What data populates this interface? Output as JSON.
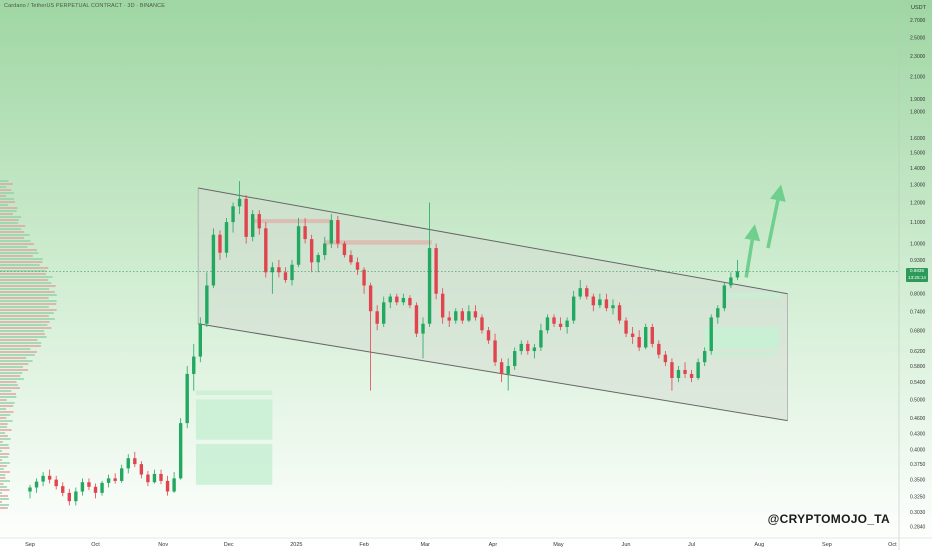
{
  "window": {
    "title": "Cardano / TetherUS PERPETUAL CONTRACT · 3D · BINANCE",
    "watermark": "@CRYPTOMOJO_TA"
  },
  "colors": {
    "background_top": "#9fd6a3",
    "background_bottom": "#ffffff",
    "up_candle": "#22a860",
    "down_candle": "#e0454f",
    "channel_fill": "#d6dcd4",
    "channel_line": "#666666",
    "zone_fill": "#c7f0d3",
    "resistance_fill": "#e2a7a4",
    "arrow": "#6fcf8f",
    "price_tag": "#2e9a5a"
  },
  "chart_data": {
    "type": "candlestick",
    "title": "Cardano / TetherUS PERPETUAL CONTRACT · 3D · BINANCE",
    "y_axis_unit": "USDT",
    "y_scale": "log",
    "ylim": [
      0.27,
      2.85
    ],
    "x_range": [
      "2024-09-01",
      "2025-10-04"
    ],
    "x_ticks": [
      {
        "label": "Sep",
        "date": "2024-09-01"
      },
      {
        "label": "Oct",
        "date": "2024-10-01"
      },
      {
        "label": "Nov",
        "date": "2024-11-01"
      },
      {
        "label": "Dec",
        "date": "2024-12-01"
      },
      {
        "label": "2025",
        "date": "2025-01-01"
      },
      {
        "label": "Feb",
        "date": "2025-02-01"
      },
      {
        "label": "Mar",
        "date": "2025-03-01"
      },
      {
        "label": "Apr",
        "date": "2025-04-01"
      },
      {
        "label": "May",
        "date": "2025-05-01"
      },
      {
        "label": "Jun",
        "date": "2025-06-01"
      },
      {
        "label": "Jul",
        "date": "2025-07-01"
      },
      {
        "label": "Aug",
        "date": "2025-08-01"
      },
      {
        "label": "Sep",
        "date": "2025-09-01"
      },
      {
        "label": "Oct",
        "date": "2025-10-01"
      }
    ],
    "y_ticks": [
      "2.7000",
      "2.5000",
      "2.3000",
      "2.1000",
      "1.9000",
      "1.8000",
      "1.6000",
      "1.5000",
      "1.4000",
      "1.3000",
      "1.2000",
      "1.1000",
      "1.0000",
      "0.9300",
      "0.8000",
      "0.7400",
      "0.6800",
      "0.6200",
      "0.5800",
      "0.5400",
      "0.5000",
      "0.4600",
      "0.4300",
      "0.4000",
      "0.3750",
      "0.3500",
      "0.3250",
      "0.3030",
      "0.2840"
    ],
    "current_price": {
      "value": "0.8835",
      "countdown": "13:25:14"
    },
    "candles": [
      {
        "d": "2024-09-01",
        "o": 0.332,
        "h": 0.342,
        "l": 0.322,
        "c": 0.338
      },
      {
        "d": "2024-09-04",
        "o": 0.338,
        "h": 0.352,
        "l": 0.33,
        "c": 0.347
      },
      {
        "d": "2024-09-07",
        "o": 0.347,
        "h": 0.362,
        "l": 0.34,
        "c": 0.356
      },
      {
        "d": "2024-09-10",
        "o": 0.356,
        "h": 0.366,
        "l": 0.344,
        "c": 0.35
      },
      {
        "d": "2024-09-13",
        "o": 0.35,
        "h": 0.356,
        "l": 0.335,
        "c": 0.34
      },
      {
        "d": "2024-09-16",
        "o": 0.34,
        "h": 0.346,
        "l": 0.325,
        "c": 0.33
      },
      {
        "d": "2024-09-19",
        "o": 0.33,
        "h": 0.336,
        "l": 0.312,
        "c": 0.318
      },
      {
        "d": "2024-09-22",
        "o": 0.318,
        "h": 0.338,
        "l": 0.312,
        "c": 0.332
      },
      {
        "d": "2024-09-25",
        "o": 0.332,
        "h": 0.352,
        "l": 0.326,
        "c": 0.346
      },
      {
        "d": "2024-09-28",
        "o": 0.346,
        "h": 0.352,
        "l": 0.334,
        "c": 0.339
      },
      {
        "d": "2024-10-01",
        "o": 0.339,
        "h": 0.344,
        "l": 0.322,
        "c": 0.33
      },
      {
        "d": "2024-10-04",
        "o": 0.33,
        "h": 0.348,
        "l": 0.326,
        "c": 0.345
      },
      {
        "d": "2024-10-07",
        "o": 0.345,
        "h": 0.358,
        "l": 0.338,
        "c": 0.352
      },
      {
        "d": "2024-10-10",
        "o": 0.352,
        "h": 0.36,
        "l": 0.344,
        "c": 0.348
      },
      {
        "d": "2024-10-13",
        "o": 0.348,
        "h": 0.374,
        "l": 0.345,
        "c": 0.368
      },
      {
        "d": "2024-10-16",
        "o": 0.368,
        "h": 0.392,
        "l": 0.36,
        "c": 0.385
      },
      {
        "d": "2024-10-19",
        "o": 0.385,
        "h": 0.396,
        "l": 0.37,
        "c": 0.375
      },
      {
        "d": "2024-10-22",
        "o": 0.375,
        "h": 0.38,
        "l": 0.352,
        "c": 0.358
      },
      {
        "d": "2024-10-25",
        "o": 0.358,
        "h": 0.364,
        "l": 0.34,
        "c": 0.346
      },
      {
        "d": "2024-10-28",
        "o": 0.346,
        "h": 0.366,
        "l": 0.344,
        "c": 0.359
      },
      {
        "d": "2024-10-31",
        "o": 0.359,
        "h": 0.366,
        "l": 0.343,
        "c": 0.348
      },
      {
        "d": "2024-11-03",
        "o": 0.348,
        "h": 0.356,
        "l": 0.326,
        "c": 0.332
      },
      {
        "d": "2024-11-06",
        "o": 0.332,
        "h": 0.362,
        "l": 0.33,
        "c": 0.352
      },
      {
        "d": "2024-11-09",
        "o": 0.352,
        "h": 0.46,
        "l": 0.35,
        "c": 0.45
      },
      {
        "d": "2024-11-12",
        "o": 0.45,
        "h": 0.58,
        "l": 0.44,
        "c": 0.56
      },
      {
        "d": "2024-11-15",
        "o": 0.56,
        "h": 0.64,
        "l": 0.52,
        "c": 0.605
      },
      {
        "d": "2024-11-18",
        "o": 0.605,
        "h": 0.72,
        "l": 0.59,
        "c": 0.7
      },
      {
        "d": "2024-11-21",
        "o": 0.7,
        "h": 0.88,
        "l": 0.69,
        "c": 0.83
      },
      {
        "d": "2024-11-24",
        "o": 0.83,
        "h": 1.07,
        "l": 0.82,
        "c": 1.04
      },
      {
        "d": "2024-11-27",
        "o": 1.04,
        "h": 1.06,
        "l": 0.93,
        "c": 0.96
      },
      {
        "d": "2024-11-30",
        "o": 0.96,
        "h": 1.12,
        "l": 0.94,
        "c": 1.1
      },
      {
        "d": "2024-12-03",
        "o": 1.1,
        "h": 1.2,
        "l": 1.05,
        "c": 1.18
      },
      {
        "d": "2024-12-06",
        "o": 1.18,
        "h": 1.32,
        "l": 1.14,
        "c": 1.22
      },
      {
        "d": "2024-12-09",
        "o": 1.22,
        "h": 1.24,
        "l": 1.0,
        "c": 1.03
      },
      {
        "d": "2024-12-12",
        "o": 1.03,
        "h": 1.16,
        "l": 1.01,
        "c": 1.14
      },
      {
        "d": "2024-12-15",
        "o": 1.14,
        "h": 1.16,
        "l": 1.04,
        "c": 1.07
      },
      {
        "d": "2024-12-18",
        "o": 1.07,
        "h": 1.1,
        "l": 0.86,
        "c": 0.88
      },
      {
        "d": "2024-12-21",
        "o": 0.88,
        "h": 0.92,
        "l": 0.8,
        "c": 0.9
      },
      {
        "d": "2024-12-24",
        "o": 0.9,
        "h": 0.93,
        "l": 0.86,
        "c": 0.88
      },
      {
        "d": "2024-12-27",
        "o": 0.88,
        "h": 0.9,
        "l": 0.84,
        "c": 0.85
      },
      {
        "d": "2024-12-30",
        "o": 0.85,
        "h": 0.93,
        "l": 0.83,
        "c": 0.91
      },
      {
        "d": "2025-01-02",
        "o": 0.91,
        "h": 1.12,
        "l": 0.9,
        "c": 1.08
      },
      {
        "d": "2025-01-05",
        "o": 1.08,
        "h": 1.12,
        "l": 1.0,
        "c": 1.02
      },
      {
        "d": "2025-01-08",
        "o": 1.02,
        "h": 1.04,
        "l": 0.88,
        "c": 0.92
      },
      {
        "d": "2025-01-11",
        "o": 0.92,
        "h": 0.96,
        "l": 0.88,
        "c": 0.95
      },
      {
        "d": "2025-01-14",
        "o": 0.95,
        "h": 1.03,
        "l": 0.93,
        "c": 1.0
      },
      {
        "d": "2025-01-17",
        "o": 1.0,
        "h": 1.14,
        "l": 0.98,
        "c": 1.11
      },
      {
        "d": "2025-01-20",
        "o": 1.11,
        "h": 1.13,
        "l": 0.98,
        "c": 1.0
      },
      {
        "d": "2025-01-23",
        "o": 1.0,
        "h": 1.01,
        "l": 0.94,
        "c": 0.95
      },
      {
        "d": "2025-01-26",
        "o": 0.95,
        "h": 0.97,
        "l": 0.91,
        "c": 0.92
      },
      {
        "d": "2025-01-29",
        "o": 0.92,
        "h": 0.94,
        "l": 0.87,
        "c": 0.89
      },
      {
        "d": "2025-02-01",
        "o": 0.89,
        "h": 0.9,
        "l": 0.8,
        "c": 0.83
      },
      {
        "d": "2025-02-04",
        "o": 0.83,
        "h": 0.84,
        "l": 0.52,
        "c": 0.74
      },
      {
        "d": "2025-02-07",
        "o": 0.74,
        "h": 0.76,
        "l": 0.68,
        "c": 0.7
      },
      {
        "d": "2025-02-10",
        "o": 0.7,
        "h": 0.79,
        "l": 0.69,
        "c": 0.77
      },
      {
        "d": "2025-02-13",
        "o": 0.77,
        "h": 0.8,
        "l": 0.75,
        "c": 0.79
      },
      {
        "d": "2025-02-16",
        "o": 0.79,
        "h": 0.8,
        "l": 0.76,
        "c": 0.77
      },
      {
        "d": "2025-02-19",
        "o": 0.77,
        "h": 0.8,
        "l": 0.76,
        "c": 0.785
      },
      {
        "d": "2025-02-22",
        "o": 0.785,
        "h": 0.795,
        "l": 0.75,
        "c": 0.76
      },
      {
        "d": "2025-02-25",
        "o": 0.76,
        "h": 0.77,
        "l": 0.66,
        "c": 0.67
      },
      {
        "d": "2025-02-28",
        "o": 0.67,
        "h": 0.72,
        "l": 0.6,
        "c": 0.7
      },
      {
        "d": "2025-03-03",
        "o": 0.7,
        "h": 1.2,
        "l": 0.69,
        "c": 0.98
      },
      {
        "d": "2025-03-06",
        "o": 0.98,
        "h": 1.0,
        "l": 0.78,
        "c": 0.8
      },
      {
        "d": "2025-03-09",
        "o": 0.8,
        "h": 0.82,
        "l": 0.7,
        "c": 0.72
      },
      {
        "d": "2025-03-12",
        "o": 0.72,
        "h": 0.74,
        "l": 0.69,
        "c": 0.71
      },
      {
        "d": "2025-03-15",
        "o": 0.71,
        "h": 0.75,
        "l": 0.7,
        "c": 0.74
      },
      {
        "d": "2025-03-18",
        "o": 0.74,
        "h": 0.75,
        "l": 0.7,
        "c": 0.71
      },
      {
        "d": "2025-03-21",
        "o": 0.71,
        "h": 0.76,
        "l": 0.705,
        "c": 0.74
      },
      {
        "d": "2025-03-24",
        "o": 0.74,
        "h": 0.76,
        "l": 0.71,
        "c": 0.72
      },
      {
        "d": "2025-03-27",
        "o": 0.72,
        "h": 0.73,
        "l": 0.67,
        "c": 0.68
      },
      {
        "d": "2025-03-30",
        "o": 0.68,
        "h": 0.69,
        "l": 0.64,
        "c": 0.65
      },
      {
        "d": "2025-04-02",
        "o": 0.65,
        "h": 0.67,
        "l": 0.58,
        "c": 0.59
      },
      {
        "d": "2025-04-05",
        "o": 0.59,
        "h": 0.6,
        "l": 0.54,
        "c": 0.56
      },
      {
        "d": "2025-04-08",
        "o": 0.56,
        "h": 0.6,
        "l": 0.52,
        "c": 0.58
      },
      {
        "d": "2025-04-11",
        "o": 0.58,
        "h": 0.63,
        "l": 0.57,
        "c": 0.62
      },
      {
        "d": "2025-04-14",
        "o": 0.62,
        "h": 0.65,
        "l": 0.61,
        "c": 0.64
      },
      {
        "d": "2025-04-17",
        "o": 0.64,
        "h": 0.65,
        "l": 0.61,
        "c": 0.62
      },
      {
        "d": "2025-04-20",
        "o": 0.62,
        "h": 0.64,
        "l": 0.6,
        "c": 0.63
      },
      {
        "d": "2025-04-23",
        "o": 0.63,
        "h": 0.7,
        "l": 0.62,
        "c": 0.68
      },
      {
        "d": "2025-04-26",
        "o": 0.68,
        "h": 0.73,
        "l": 0.67,
        "c": 0.72
      },
      {
        "d": "2025-04-29",
        "o": 0.72,
        "h": 0.73,
        "l": 0.69,
        "c": 0.7
      },
      {
        "d": "2025-05-02",
        "o": 0.7,
        "h": 0.72,
        "l": 0.68,
        "c": 0.69
      },
      {
        "d": "2025-05-05",
        "o": 0.69,
        "h": 0.72,
        "l": 0.67,
        "c": 0.71
      },
      {
        "d": "2025-05-08",
        "o": 0.71,
        "h": 0.81,
        "l": 0.7,
        "c": 0.79
      },
      {
        "d": "2025-05-11",
        "o": 0.79,
        "h": 0.85,
        "l": 0.78,
        "c": 0.82
      },
      {
        "d": "2025-05-14",
        "o": 0.82,
        "h": 0.83,
        "l": 0.78,
        "c": 0.79
      },
      {
        "d": "2025-05-17",
        "o": 0.79,
        "h": 0.8,
        "l": 0.74,
        "c": 0.76
      },
      {
        "d": "2025-05-20",
        "o": 0.76,
        "h": 0.8,
        "l": 0.75,
        "c": 0.78
      },
      {
        "d": "2025-05-23",
        "o": 0.78,
        "h": 0.8,
        "l": 0.74,
        "c": 0.75
      },
      {
        "d": "2025-05-26",
        "o": 0.75,
        "h": 0.78,
        "l": 0.73,
        "c": 0.76
      },
      {
        "d": "2025-05-29",
        "o": 0.76,
        "h": 0.77,
        "l": 0.7,
        "c": 0.71
      },
      {
        "d": "2025-06-01",
        "o": 0.71,
        "h": 0.72,
        "l": 0.66,
        "c": 0.67
      },
      {
        "d": "2025-06-04",
        "o": 0.67,
        "h": 0.69,
        "l": 0.64,
        "c": 0.66
      },
      {
        "d": "2025-06-07",
        "o": 0.66,
        "h": 0.68,
        "l": 0.62,
        "c": 0.63
      },
      {
        "d": "2025-06-10",
        "o": 0.63,
        "h": 0.7,
        "l": 0.625,
        "c": 0.69
      },
      {
        "d": "2025-06-13",
        "o": 0.69,
        "h": 0.7,
        "l": 0.63,
        "c": 0.64
      },
      {
        "d": "2025-06-16",
        "o": 0.64,
        "h": 0.65,
        "l": 0.6,
        "c": 0.61
      },
      {
        "d": "2025-06-19",
        "o": 0.61,
        "h": 0.62,
        "l": 0.58,
        "c": 0.59
      },
      {
        "d": "2025-06-22",
        "o": 0.59,
        "h": 0.6,
        "l": 0.52,
        "c": 0.55
      },
      {
        "d": "2025-06-25",
        "o": 0.55,
        "h": 0.58,
        "l": 0.54,
        "c": 0.57
      },
      {
        "d": "2025-06-28",
        "o": 0.57,
        "h": 0.59,
        "l": 0.55,
        "c": 0.56
      },
      {
        "d": "2025-07-01",
        "o": 0.56,
        "h": 0.57,
        "l": 0.54,
        "c": 0.55
      },
      {
        "d": "2025-07-04",
        "o": 0.55,
        "h": 0.6,
        "l": 0.545,
        "c": 0.59
      },
      {
        "d": "2025-07-07",
        "o": 0.59,
        "h": 0.63,
        "l": 0.58,
        "c": 0.62
      },
      {
        "d": "2025-07-10",
        "o": 0.62,
        "h": 0.73,
        "l": 0.61,
        "c": 0.72
      },
      {
        "d": "2025-07-13",
        "o": 0.72,
        "h": 0.76,
        "l": 0.7,
        "c": 0.75
      },
      {
        "d": "2025-07-16",
        "o": 0.75,
        "h": 0.84,
        "l": 0.74,
        "c": 0.83
      },
      {
        "d": "2025-07-19",
        "o": 0.83,
        "h": 0.88,
        "l": 0.82,
        "c": 0.86
      },
      {
        "d": "2025-07-22",
        "o": 0.86,
        "h": 0.93,
        "l": 0.85,
        "c": 0.8835
      }
    ],
    "annotations": {
      "channel": {
        "upper": [
          {
            "d": "2024-11-17",
            "p": 1.28
          },
          {
            "d": "2025-08-14",
            "p": 0.8
          }
        ],
        "lower": [
          {
            "d": "2024-11-17",
            "p": 0.7
          },
          {
            "d": "2025-08-14",
            "p": 0.455
          }
        ]
      },
      "demand_zones": [
        {
          "d1": "2024-11-16",
          "d2": "2024-12-21",
          "p1": 0.51,
          "p2": 0.52
        },
        {
          "d1": "2024-11-16",
          "d2": "2024-12-21",
          "p1": 0.418,
          "p2": 0.5
        },
        {
          "d1": "2024-11-16",
          "d2": "2024-12-21",
          "p1": 0.342,
          "p2": 0.41
        },
        {
          "d1": "2025-07-16",
          "d2": "2025-08-11",
          "p1": 0.785,
          "p2": 0.803
        },
        {
          "d1": "2025-07-07",
          "d2": "2025-08-10",
          "p1": 0.625,
          "p2": 0.69
        },
        {
          "d1": "2025-07-07",
          "d2": "2025-08-08",
          "p1": 0.605,
          "p2": 0.615
        }
      ],
      "resistance_zones": [
        {
          "d1": "2024-12-12",
          "d2": "2025-01-17",
          "p1": 1.095,
          "p2": 1.115
        },
        {
          "d1": "2025-01-14",
          "d2": "2025-03-04",
          "p1": 0.995,
          "p2": 1.015
        }
      ],
      "arrows": [
        {
          "from_d": "2025-07-26",
          "from_p": 0.86,
          "to_d": "2025-07-30",
          "to_p": 1.09
        },
        {
          "from_d": "2025-08-05",
          "from_p": 0.98,
          "to_d": "2025-08-11",
          "to_p": 1.3
        }
      ]
    }
  }
}
